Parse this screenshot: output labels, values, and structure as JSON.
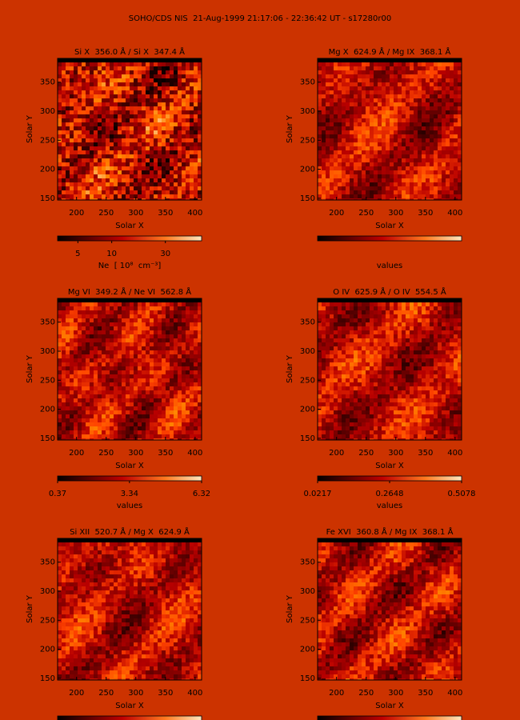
{
  "title": "SOHO/CDS NIS  21-Aug-1999 21:17:06 - 22:36:42 UT - s17280r00",
  "chart_data": [
    {
      "type": "heatmap",
      "title": "Si X  356.0 Å / Si X  347.4 Å",
      "xlabel": "Solar X",
      "ylabel": "Solar Y",
      "xlim": [
        168,
        411
      ],
      "ylim": [
        147,
        391
      ],
      "xticks": [
        200,
        250,
        300,
        350,
        400
      ],
      "yticks": [
        150,
        200,
        250,
        300,
        350
      ],
      "colorbar": {
        "label": "Ne  [ 10⁸  cm⁻³]",
        "log": true,
        "lim": [
          3.3,
          63
        ],
        "ticks": [
          5,
          10,
          30
        ]
      }
    },
    {
      "type": "heatmap",
      "title": "Mg X  624.9 Å / Mg IX  368.1 Å",
      "xlabel": "Solar X",
      "ylabel": "Solar Y",
      "xlim": [
        168,
        411
      ],
      "ylim": [
        147,
        391
      ],
      "xticks": [
        200,
        250,
        300,
        350,
        400
      ],
      "yticks": [
        150,
        200,
        250,
        300,
        350
      ],
      "colorbar": {
        "label": "values"
      }
    },
    {
      "type": "heatmap",
      "title": "Mg VI  349.2 Å / Ne VI  562.8 Å",
      "xlabel": "Solar X",
      "ylabel": "Solar Y",
      "xlim": [
        168,
        411
      ],
      "ylim": [
        147,
        391
      ],
      "xticks": [
        200,
        250,
        300,
        350,
        400
      ],
      "yticks": [
        150,
        200,
        250,
        300,
        350
      ],
      "colorbar": {
        "label": "values",
        "log": false,
        "lim": [
          0.37,
          6.32
        ],
        "ticks": [
          0.37,
          3.34,
          6.32
        ]
      }
    },
    {
      "type": "heatmap",
      "title": "O IV  625.9 Å / O IV  554.5 Å",
      "xlabel": "Solar X",
      "ylabel": "Solar Y",
      "xlim": [
        168,
        411
      ],
      "ylim": [
        147,
        391
      ],
      "xticks": [
        200,
        250,
        300,
        350,
        400
      ],
      "yticks": [
        150,
        200,
        250,
        300,
        350
      ],
      "colorbar": {
        "label": "values",
        "log": false,
        "lim": [
          0.0217,
          0.5078
        ],
        "ticks": [
          0.0217,
          0.2648,
          0.5078
        ]
      }
    },
    {
      "type": "heatmap",
      "title": "Si XII  520.7 Å / Mg X  624.9 Å",
      "xlabel": "Solar X",
      "ylabel": "Solar Y",
      "xlim": [
        168,
        411
      ],
      "ylim": [
        147,
        391
      ],
      "xticks": [
        200,
        250,
        300,
        350,
        400
      ],
      "yticks": [
        150,
        200,
        250,
        300,
        350
      ]
    },
    {
      "type": "heatmap",
      "title": "Fe XVI  360.8 Å / Mg IX  368.1 Å",
      "xlabel": "Solar X",
      "ylabel": "Solar Y",
      "xlim": [
        168,
        411
      ],
      "ylim": [
        147,
        391
      ],
      "xticks": [
        200,
        250,
        300,
        350,
        400
      ],
      "yticks": [
        150,
        200,
        250,
        300,
        350
      ]
    }
  ]
}
